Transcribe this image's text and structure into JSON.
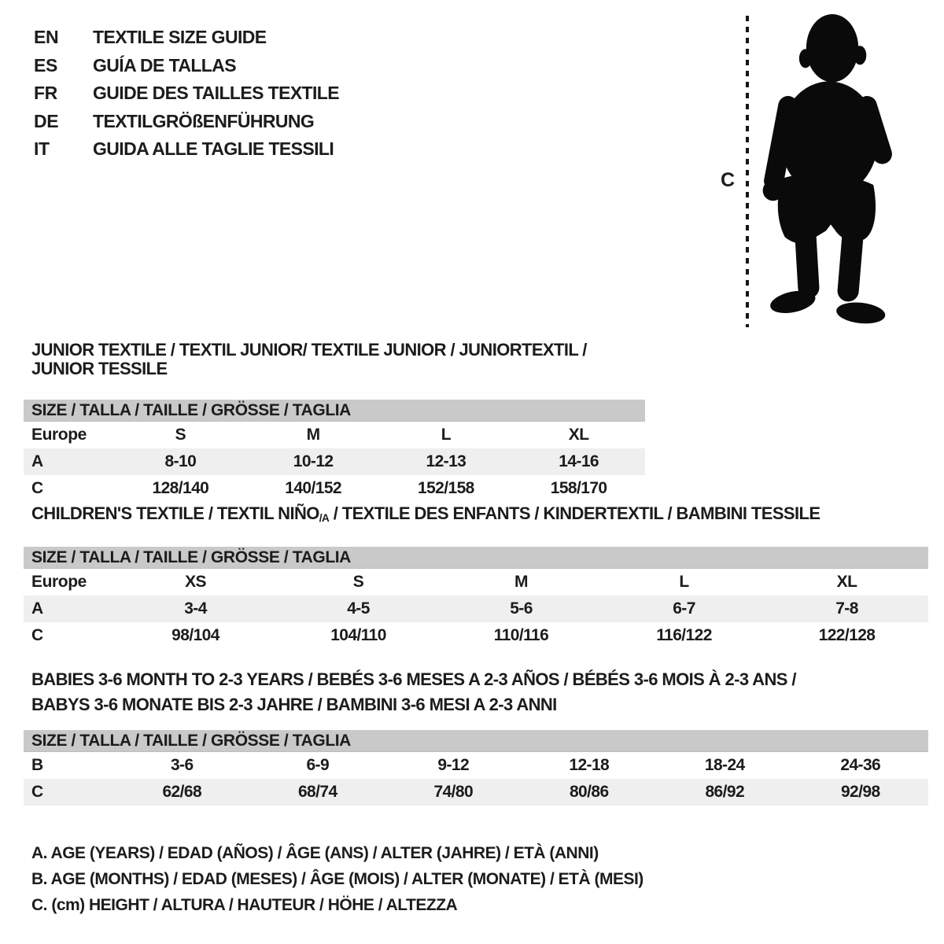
{
  "colors": {
    "background": "#ffffff",
    "text": "#1c1c1c",
    "table_header_bg": "#c9c9c9",
    "row_shaded_bg": "#efefef",
    "silhouette": "#0a0a0a"
  },
  "header": {
    "languages": [
      {
        "code": "EN",
        "title": "TEXTILE SIZE GUIDE"
      },
      {
        "code": "ES",
        "title": "GUÍA DE TALLAS"
      },
      {
        "code": "FR",
        "title": "GUIDE DES TAILLES TEXTILE"
      },
      {
        "code": "DE",
        "title": "TEXTILGRÖßENFÜHRUNG"
      },
      {
        "code": "IT",
        "title": "GUIDA ALLE TAGLIE TESSILI"
      }
    ]
  },
  "figure": {
    "illustration": "toddler-silhouette",
    "measure_label": "C"
  },
  "tables": [
    {
      "title_lines": [
        [
          {
            "text": "JUNIOR TEXTILE / TEXTIL JUNIOR/ TEXTILE JUNIOR / JUNIORTEXTIL / JUNIOR TESSILE"
          }
        ]
      ],
      "size_header": "SIZE / TALLA / TAILLE / GRÖSSE / TAGLIA",
      "rows": [
        {
          "label": "Europe",
          "values": [
            "S",
            "M",
            "L",
            "XL"
          ],
          "shaded": false
        },
        {
          "label": "A",
          "values": [
            "8-10",
            "10-12",
            "12-13",
            "14-16"
          ],
          "shaded": true
        },
        {
          "label": "C",
          "values": [
            "128/140",
            "140/152",
            "152/158",
            "158/170"
          ],
          "shaded": false
        }
      ]
    },
    {
      "title_lines": [
        [
          {
            "text": "CHILDREN'S TEXTILE / TEXTIL NIÑO"
          },
          {
            "text": "/A",
            "sub": true
          },
          {
            "text": " / TEXTILE DES ENFANTS / KINDERTEXTIL / BAMBINI TESSILE"
          }
        ]
      ],
      "size_header": "SIZE / TALLA / TAILLE / GRÖSSE / TAGLIA",
      "rows": [
        {
          "label": "Europe",
          "values": [
            "XS",
            "S",
            "M",
            "L",
            "XL"
          ],
          "shaded": false
        },
        {
          "label": "A",
          "values": [
            "3-4",
            "4-5",
            "5-6",
            "6-7",
            "7-8"
          ],
          "shaded": true
        },
        {
          "label": "C",
          "values": [
            "98/104",
            "104/110",
            "110/116",
            "116/122",
            "122/128"
          ],
          "shaded": false
        }
      ]
    },
    {
      "title_lines": [
        [
          {
            "text": "BABIES 3-6 MONTH TO 2-3 YEARS / BEBÉS 3-6 MESES A 2-3 AÑOS / BÉBÉS 3-6 MOIS À 2-3 ANS /"
          }
        ],
        [
          {
            "text": "BABYS 3-6 MONATE BIS 2-3 JAHRE / BAMBINI 3-6 MESI A 2-3 ANNI"
          }
        ]
      ],
      "size_header": "SIZE / TALLA / TAILLE / GRÖSSE / TAGLIA",
      "rows": [
        {
          "label": "B",
          "values": [
            "3-6",
            "6-9",
            "9-12",
            "12-18",
            "18-24",
            "24-36"
          ],
          "shaded": false
        },
        {
          "label": "C",
          "values": [
            "62/68",
            "68/74",
            "74/80",
            "80/86",
            "86/92",
            "92/98"
          ],
          "shaded": true
        }
      ]
    }
  ],
  "legend": {
    "lines": [
      "A. AGE (YEARS) / EDAD (AÑOS) / ÂGE (ANS) / ALTER (JAHRE) / ETÀ (ANNI)",
      "B. AGE (MONTHS) / EDAD (MESES) / ÂGE (MOIS) / ALTER (MONATE) / ETÀ (MESI)",
      "C. (cm) HEIGHT / ALTURA / HAUTEUR / HÖHE / ALTEZZA"
    ]
  }
}
